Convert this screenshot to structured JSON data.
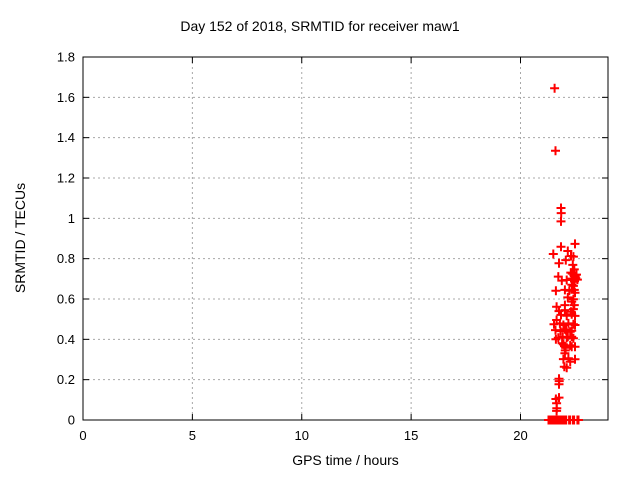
{
  "window": {
    "background_color": "#ffffff",
    "text_color": "#000000"
  },
  "chart_data": {
    "type": "scatter",
    "title": "Day 152 of 2018, SRMTID for receiver maw1",
    "xlabel": "GPS time / hours",
    "ylabel": "SRMTID / TECUs",
    "xlim": [
      0,
      24
    ],
    "ylim": [
      0,
      1.8
    ],
    "xticks": {
      "values": [
        0,
        5,
        10,
        15,
        20
      ],
      "labels": [
        "0",
        "5",
        "10",
        "15",
        "20"
      ]
    },
    "yticks": {
      "values": [
        0,
        0.2,
        0.4,
        0.6,
        0.8,
        1.0,
        1.2,
        1.4,
        1.6,
        1.8
      ],
      "labels": [
        "0",
        "0.2",
        "0.4",
        "0.6",
        "0.8",
        "1",
        "1.2",
        "1.4",
        "1.6",
        "1.8"
      ]
    },
    "grid": true,
    "grid_style": "dotted",
    "grid_color": "#a8a8a8",
    "border_color": "#000000",
    "legend_position": "none",
    "series": [
      {
        "name": "SRMTID",
        "marker": "plus",
        "color": "#ff0000",
        "points": [
          [
            21.56,
            1.645
          ],
          [
            21.6,
            1.335
          ],
          [
            21.85,
            1.051
          ],
          [
            21.86,
            1.026
          ],
          [
            21.85,
            0.985
          ],
          [
            21.85,
            0.859
          ],
          [
            22.49,
            0.873
          ],
          [
            21.5,
            0.823
          ],
          [
            22.16,
            0.838
          ],
          [
            22.31,
            0.813
          ],
          [
            22.42,
            0.81
          ],
          [
            22.07,
            0.793
          ],
          [
            21.76,
            0.777
          ],
          [
            22.39,
            0.769
          ],
          [
            22.46,
            0.747
          ],
          [
            22.3,
            0.731
          ],
          [
            22.37,
            0.726
          ],
          [
            22.44,
            0.719
          ],
          [
            22.5,
            0.713
          ],
          [
            22.56,
            0.721
          ],
          [
            22.33,
            0.701
          ],
          [
            22.4,
            0.694
          ],
          [
            22.47,
            0.688
          ],
          [
            22.53,
            0.703
          ],
          [
            22.6,
            0.696
          ],
          [
            22.35,
            0.671
          ],
          [
            22.42,
            0.665
          ],
          [
            21.73,
            0.711
          ],
          [
            21.89,
            0.691
          ],
          [
            22.11,
            0.694
          ],
          [
            21.62,
            0.641
          ],
          [
            22.03,
            0.645
          ],
          [
            22.23,
            0.641
          ],
          [
            22.46,
            0.645
          ],
          [
            22.49,
            0.631
          ],
          [
            22.16,
            0.608
          ],
          [
            22.42,
            0.599
          ],
          [
            22.34,
            0.587
          ],
          [
            21.65,
            0.562
          ],
          [
            22.42,
            0.55
          ],
          [
            22.03,
            0.545
          ],
          [
            21.76,
            0.54
          ],
          [
            22.34,
            0.524
          ],
          [
            21.85,
            0.521
          ],
          [
            22.11,
            0.517
          ],
          [
            22.03,
            0.57
          ],
          [
            22.46,
            0.57
          ],
          [
            22.31,
            0.537
          ],
          [
            22.49,
            0.516
          ],
          [
            21.65,
            0.496
          ],
          [
            21.53,
            0.475
          ],
          [
            21.8,
            0.479
          ],
          [
            21.96,
            0.471
          ],
          [
            22.19,
            0.479
          ],
          [
            22.42,
            0.475
          ],
          [
            22.49,
            0.471
          ],
          [
            21.6,
            0.446
          ],
          [
            21.83,
            0.441
          ],
          [
            22.08,
            0.446
          ],
          [
            22.27,
            0.438
          ],
          [
            22.03,
            0.45
          ],
          [
            22.34,
            0.443
          ],
          [
            21.73,
            0.408
          ],
          [
            21.93,
            0.413
          ],
          [
            22.11,
            0.408
          ],
          [
            22.34,
            0.413
          ],
          [
            21.62,
            0.4
          ],
          [
            22.16,
            0.413
          ],
          [
            22.42,
            0.405
          ],
          [
            21.9,
            0.381
          ],
          [
            21.96,
            0.375
          ],
          [
            22.01,
            0.366
          ],
          [
            22.06,
            0.358
          ],
          [
            22.27,
            0.37
          ],
          [
            22.34,
            0.363
          ],
          [
            22.49,
            0.363
          ],
          [
            22.05,
            0.345
          ],
          [
            22.03,
            0.331
          ],
          [
            21.96,
            0.302
          ],
          [
            22.19,
            0.306
          ],
          [
            22.27,
            0.289
          ],
          [
            22.49,
            0.301
          ],
          [
            22.0,
            0.264
          ],
          [
            22.11,
            0.259
          ],
          [
            21.76,
            0.205
          ],
          [
            21.77,
            0.193
          ],
          [
            21.76,
            0.177
          ],
          [
            21.76,
            0.111
          ],
          [
            21.62,
            0.104
          ],
          [
            21.65,
            0.083
          ],
          [
            21.66,
            0.058
          ],
          [
            21.65,
            0.045
          ],
          [
            21.28,
            0.0
          ],
          [
            21.33,
            0.0
          ],
          [
            21.38,
            0.0
          ],
          [
            21.43,
            0.0
          ],
          [
            21.48,
            0.0
          ],
          [
            21.53,
            0.0
          ],
          [
            21.62,
            0.0
          ],
          [
            21.67,
            0.0
          ],
          [
            21.76,
            0.0
          ],
          [
            21.81,
            0.0
          ],
          [
            21.9,
            0.0
          ],
          [
            21.95,
            0.0
          ],
          [
            22.04,
            0.0
          ],
          [
            22.09,
            0.0
          ],
          [
            22.22,
            0.0
          ],
          [
            22.27,
            0.0
          ],
          [
            22.4,
            0.0
          ],
          [
            22.45,
            0.0
          ],
          [
            22.6,
            0.0
          ],
          [
            22.65,
            0.0
          ]
        ]
      }
    ]
  }
}
